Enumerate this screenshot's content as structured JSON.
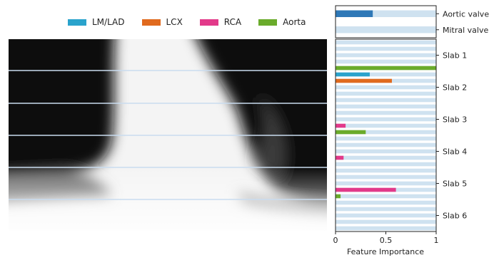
{
  "chart_data": {
    "type": "bar",
    "orientation": "horizontal",
    "xlabel": "Feature Importance",
    "xlim": [
      0,
      1
    ],
    "x_ticks": [
      "0",
      "0.5",
      "1"
    ],
    "x_tick_values": [
      0,
      0.5,
      1
    ],
    "legend": [
      {
        "name": "LM/LAD",
        "color": "#2aa3cc"
      },
      {
        "name": "LCX",
        "color": "#e06a1e"
      },
      {
        "name": "RCA",
        "color": "#e23a8a"
      },
      {
        "name": "Aorta",
        "color": "#6aab2b"
      }
    ],
    "background_color": "#cfe2f0",
    "valve_panel": {
      "categories": [
        "Aortic valve",
        "Mitral valve"
      ],
      "values": [
        0.37,
        0
      ],
      "color": "#2e78b7"
    },
    "slab_panel": {
      "slabs": [
        "Slab 1",
        "Slab 2",
        "Slab 3",
        "Slab 4",
        "Slab 5",
        "Slab 6"
      ],
      "rows_per_slab": 5,
      "rows": [
        {
          "slab": 1,
          "LM/LAD": 0,
          "LCX": 0,
          "RCA": 0,
          "Aorta": 0
        },
        {
          "slab": 1,
          "LM/LAD": 0,
          "LCX": 0,
          "RCA": 0,
          "Aorta": 0
        },
        {
          "slab": 1,
          "LM/LAD": 0,
          "LCX": 0,
          "RCA": 0,
          "Aorta": 0
        },
        {
          "slab": 1,
          "LM/LAD": 0,
          "LCX": 0,
          "RCA": 0,
          "Aorta": 0
        },
        {
          "slab": 1,
          "LM/LAD": 0,
          "LCX": 0,
          "RCA": 0,
          "Aorta": 1.0
        },
        {
          "slab": 2,
          "LM/LAD": 0.34,
          "LCX": 0,
          "RCA": 0,
          "Aorta": 0
        },
        {
          "slab": 2,
          "LM/LAD": 0,
          "LCX": 0.56,
          "RCA": 0,
          "Aorta": 0
        },
        {
          "slab": 2,
          "LM/LAD": 0,
          "LCX": 0,
          "RCA": 0,
          "Aorta": 0
        },
        {
          "slab": 2,
          "LM/LAD": 0,
          "LCX": 0,
          "RCA": 0,
          "Aorta": 0
        },
        {
          "slab": 2,
          "LM/LAD": 0,
          "LCX": 0,
          "RCA": 0,
          "Aorta": 0
        },
        {
          "slab": 3,
          "LM/LAD": 0,
          "LCX": 0,
          "RCA": 0,
          "Aorta": 0
        },
        {
          "slab": 3,
          "LM/LAD": 0,
          "LCX": 0,
          "RCA": 0,
          "Aorta": 0
        },
        {
          "slab": 3,
          "LM/LAD": 0,
          "LCX": 0,
          "RCA": 0,
          "Aorta": 0
        },
        {
          "slab": 3,
          "LM/LAD": 0,
          "LCX": 0,
          "RCA": 0.1,
          "Aorta": 0
        },
        {
          "slab": 3,
          "LM/LAD": 0,
          "LCX": 0,
          "RCA": 0,
          "Aorta": 0.3
        },
        {
          "slab": 4,
          "LM/LAD": 0,
          "LCX": 0,
          "RCA": 0,
          "Aorta": 0
        },
        {
          "slab": 4,
          "LM/LAD": 0,
          "LCX": 0,
          "RCA": 0,
          "Aorta": 0
        },
        {
          "slab": 4,
          "LM/LAD": 0,
          "LCX": 0,
          "RCA": 0,
          "Aorta": 0
        },
        {
          "slab": 4,
          "LM/LAD": 0,
          "LCX": 0,
          "RCA": 0.08,
          "Aorta": 0
        },
        {
          "slab": 4,
          "LM/LAD": 0,
          "LCX": 0,
          "RCA": 0,
          "Aorta": 0
        },
        {
          "slab": 5,
          "LM/LAD": 0,
          "LCX": 0,
          "RCA": 0,
          "Aorta": 0
        },
        {
          "slab": 5,
          "LM/LAD": 0,
          "LCX": 0,
          "RCA": 0,
          "Aorta": 0
        },
        {
          "slab": 5,
          "LM/LAD": 0,
          "LCX": 0,
          "RCA": 0,
          "Aorta": 0
        },
        {
          "slab": 5,
          "LM/LAD": 0,
          "LCX": 0,
          "RCA": 0.6,
          "Aorta": 0
        },
        {
          "slab": 5,
          "LM/LAD": 0,
          "LCX": 0,
          "RCA": 0,
          "Aorta": 0.05
        },
        {
          "slab": 6,
          "LM/LAD": 0,
          "LCX": 0,
          "RCA": 0,
          "Aorta": 0
        },
        {
          "slab": 6,
          "LM/LAD": 0,
          "LCX": 0,
          "RCA": 0,
          "Aorta": 0
        },
        {
          "slab": 6,
          "LM/LAD": 0,
          "LCX": 0,
          "RCA": 0,
          "Aorta": 0
        },
        {
          "slab": 6,
          "LM/LAD": 0,
          "LCX": 0,
          "RCA": 0,
          "Aorta": 0
        },
        {
          "slab": 6,
          "LM/LAD": 0,
          "LCX": 0,
          "RCA": 0,
          "Aorta": 0
        }
      ]
    }
  }
}
